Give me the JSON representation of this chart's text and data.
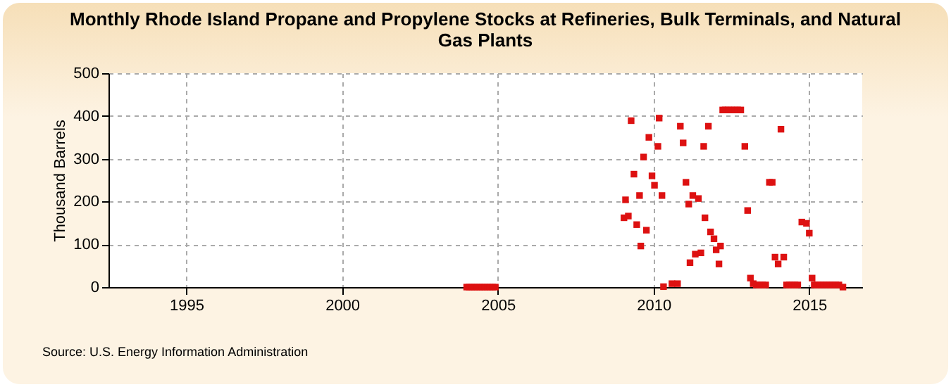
{
  "chart_data": {
    "type": "scatter",
    "title": "Monthly Rhode Island Propane and Propylene Stocks at Refineries, Bulk Terminals, and Natural Gas Plants",
    "ylabel": "Thousand Barrels",
    "annotations": [
      "Source: U.S. Energy Information Administration"
    ],
    "x": [
      2004.0,
      2004.08,
      2004.17,
      2004.25,
      2004.33,
      2004.42,
      2004.5,
      2004.58,
      2004.67,
      2004.75,
      2004.83,
      2004.92,
      2009.05,
      2009.1,
      2009.19,
      2009.28,
      2009.37,
      2009.46,
      2009.55,
      2009.59,
      2009.68,
      2009.77,
      2009.85,
      2009.95,
      2010.03,
      2010.14,
      2010.18,
      2010.27,
      2010.32,
      2010.59,
      2010.77,
      2010.86,
      2010.95,
      2011.04,
      2011.13,
      2011.17,
      2011.26,
      2011.34,
      2011.44,
      2011.52,
      2011.61,
      2011.65,
      2011.76,
      2011.83,
      2011.94,
      2012.01,
      2012.1,
      2012.15,
      2012.22,
      2012.3,
      2012.4,
      2012.5,
      2012.6,
      2012.7,
      2012.8,
      2012.93,
      2013.02,
      2013.11,
      2013.2,
      2013.3,
      2013.4,
      2013.5,
      2013.6,
      2013.72,
      2013.81,
      2013.9,
      2014.0,
      2014.09,
      2014.18,
      2014.27,
      2014.36,
      2014.45,
      2014.54,
      2014.63,
      2014.76,
      2014.91,
      2015.0,
      2015.09,
      2015.16,
      2015.25,
      2015.35,
      2015.45,
      2015.55,
      2015.65,
      2015.75,
      2015.85,
      2015.95,
      2016.08
    ],
    "values": [
      0,
      0,
      0,
      0,
      0,
      0,
      0,
      0,
      0,
      0,
      0,
      0,
      162,
      204,
      166,
      389,
      264,
      146,
      214,
      96,
      304,
      133,
      350,
      260,
      238,
      329,
      395,
      214,
      1,
      8,
      8,
      376,
      337,
      245,
      194,
      57,
      214,
      77,
      207,
      80,
      329,
      162,
      376,
      129,
      113,
      87,
      54,
      96,
      414,
      414,
      414,
      414,
      414,
      414,
      414,
      329,
      179,
      21,
      8,
      5,
      5,
      5,
      5,
      245,
      245,
      70,
      54,
      369,
      70,
      5,
      5,
      5,
      5,
      5,
      152,
      149,
      126,
      21,
      5,
      5,
      5,
      5,
      5,
      5,
      5,
      5,
      5,
      0
    ],
    "color": "#dd1111",
    "marker": "square",
    "xlim": [
      1992.5,
      2016.7
    ],
    "xticks": [
      1995,
      2000,
      2005,
      2010,
      2015
    ],
    "ylim": [
      0,
      500
    ],
    "yticks": [
      0,
      100,
      200,
      300,
      400,
      500
    ],
    "grid": true
  }
}
